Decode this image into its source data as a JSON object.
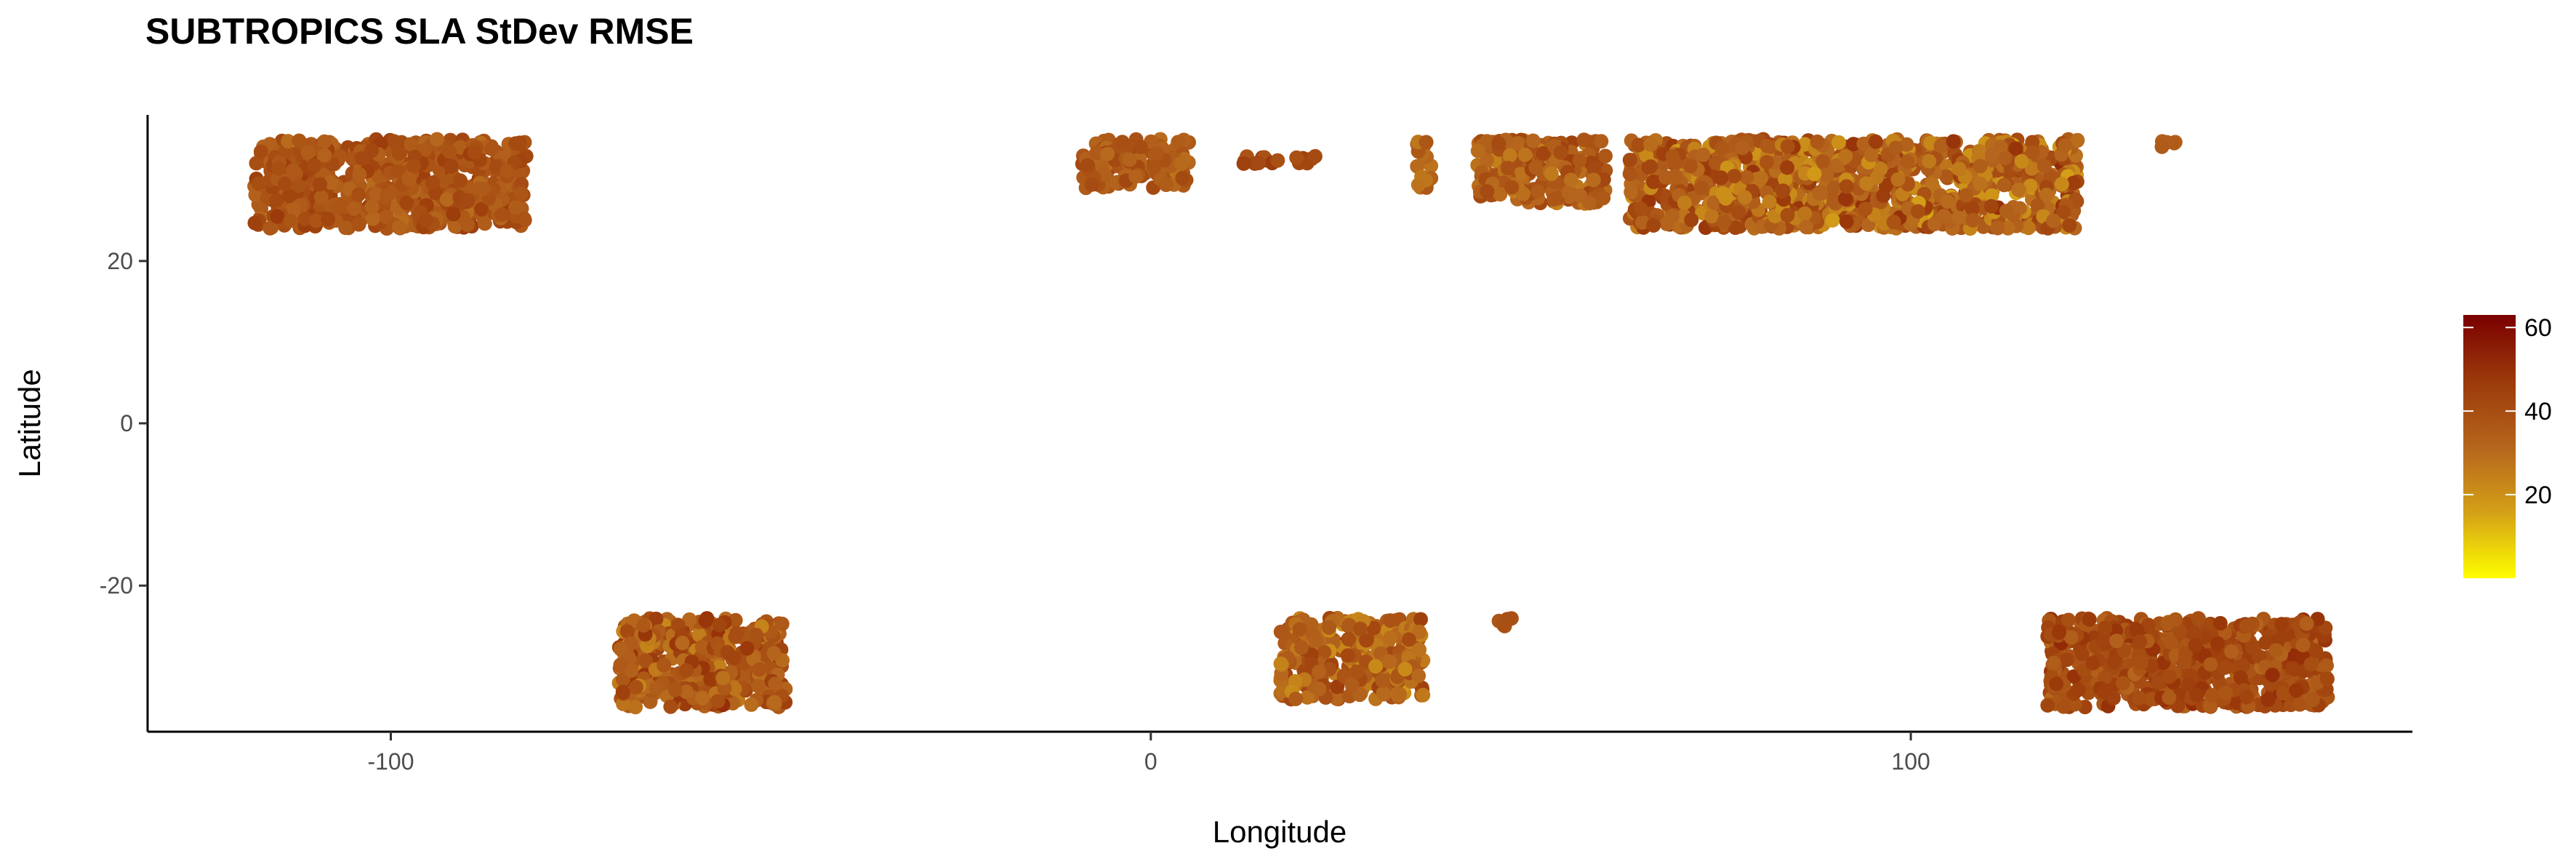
{
  "chart_data": {
    "type": "scatter",
    "title": "SUBTROPICS SLA StDev RMSE",
    "xlabel": "Longitude",
    "ylabel": "Latitude",
    "xlim": [
      -132,
      166
    ],
    "ylim": [
      -38,
      38
    ],
    "x_ticks": [
      -100,
      0,
      100
    ],
    "x_tick_labels": [
      "-100",
      "0",
      "100"
    ],
    "y_ticks": [
      -20,
      0,
      20
    ],
    "y_tick_labels": [
      "-20",
      "0",
      "20"
    ],
    "grid": false,
    "legend": {
      "placement": "right",
      "type": "colorbar",
      "title": "",
      "min": 0,
      "max": 63,
      "ticks": [
        20,
        40,
        60
      ],
      "tick_labels": [
        "20",
        "40",
        "60"
      ],
      "colors": [
        "#ffff00",
        "#d4a017",
        "#b5651d",
        "#9b3a0a",
        "#7a0000"
      ]
    },
    "regions": [
      {
        "lon": [
          -118,
          -82
        ],
        "lat": [
          24,
          35
        ],
        "mean": 38,
        "spread": 6
      },
      {
        "lon": [
          -70,
          -48
        ],
        "lat": [
          -35,
          -24
        ],
        "mean": 36,
        "spread": 10
      },
      {
        "lon": [
          -9,
          5
        ],
        "lat": [
          29,
          35
        ],
        "mean": 36,
        "spread": 6
      },
      {
        "lon": [
          12,
          22
        ],
        "lat": [
          32,
          33
        ],
        "mean": 42,
        "spread": 4
      },
      {
        "lon": [
          17,
          36
        ],
        "lat": [
          -34,
          -24
        ],
        "mean": 33,
        "spread": 10
      },
      {
        "lon": [
          35,
          37
        ],
        "lat": [
          29,
          35
        ],
        "mean": 32,
        "spread": 4
      },
      {
        "lon": [
          43,
          60
        ],
        "lat": [
          27,
          35
        ],
        "mean": 35,
        "spread": 8
      },
      {
        "lon": [
          45,
          48
        ],
        "lat": [
          -25,
          -24
        ],
        "mean": 40,
        "spread": 3
      },
      {
        "lon": [
          63,
          122
        ],
        "lat": [
          24,
          35
        ],
        "mean": 33,
        "spread": 12
      },
      {
        "lon": [
          118,
          155
        ],
        "lat": [
          -35,
          -24
        ],
        "mean": 41,
        "spread": 7
      },
      {
        "lon": [
          133,
          136
        ],
        "lat": [
          34,
          35
        ],
        "mean": 35,
        "spread": 3
      }
    ]
  }
}
